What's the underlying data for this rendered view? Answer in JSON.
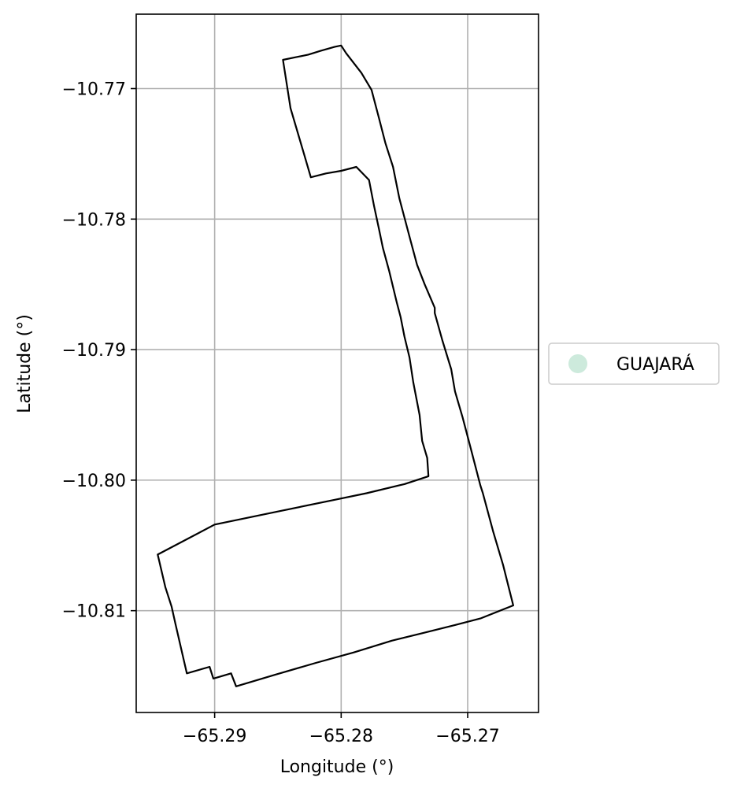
{
  "chart_data": {
    "type": "map",
    "xlabel": "Longitude (°)",
    "ylabel": "Latitude (°)",
    "xlim": [
      -65.2962,
      -65.2644
    ],
    "ylim": [
      -10.8178,
      -10.7643
    ],
    "x_ticks": [
      -65.29,
      -65.28,
      -65.27
    ],
    "x_tick_labels": [
      "−65.29",
      "−65.28",
      "−65.27"
    ],
    "y_ticks": [
      -10.77,
      -10.78,
      -10.79,
      -10.8,
      -10.81
    ],
    "y_tick_labels": [
      "−10.77",
      "−10.78",
      "−10.79",
      "−10.80",
      "−10.81"
    ],
    "grid": true,
    "legend_position": "right",
    "legend": [
      {
        "label": "GUAJARÁ",
        "color": "#cdeadc"
      }
    ],
    "boundary_color": "#000000",
    "boundary": [
      [
        -65.2846,
        -10.7678
      ],
      [
        -65.2836,
        -10.7676
      ],
      [
        -65.2826,
        -10.7674
      ],
      [
        -65.2816,
        -10.7671
      ],
      [
        -65.2805,
        -10.7668
      ],
      [
        -65.28,
        -10.7667
      ],
      [
        -65.2796,
        -10.7673
      ],
      [
        -65.2784,
        -10.7688
      ],
      [
        -65.2776,
        -10.7701
      ],
      [
        -65.277,
        -10.7723
      ],
      [
        -65.2765,
        -10.7742
      ],
      [
        -65.2759,
        -10.776
      ],
      [
        -65.2754,
        -10.7784
      ],
      [
        -65.2745,
        -10.7817
      ],
      [
        -65.274,
        -10.7835
      ],
      [
        -65.2734,
        -10.785
      ],
      [
        -65.2726,
        -10.7868
      ],
      [
        -65.2726,
        -10.7872
      ],
      [
        -65.272,
        -10.7893
      ],
      [
        -65.2713,
        -10.7915
      ],
      [
        -65.271,
        -10.7932
      ],
      [
        -65.2704,
        -10.7952
      ],
      [
        -65.2698,
        -10.7974
      ],
      [
        -65.269,
        -10.8004
      ],
      [
        -65.2688,
        -10.801
      ],
      [
        -65.268,
        -10.8039
      ],
      [
        -65.2672,
        -10.8065
      ],
      [
        -65.2664,
        -10.8096
      ],
      [
        -65.269,
        -10.8106
      ],
      [
        -65.271,
        -10.8111
      ],
      [
        -65.2735,
        -10.8117
      ],
      [
        -65.276,
        -10.8123
      ],
      [
        -65.279,
        -10.8132
      ],
      [
        -65.282,
        -10.814
      ],
      [
        -65.2852,
        -10.8149
      ],
      [
        -65.2883,
        -10.8158
      ],
      [
        -65.2887,
        -10.8148
      ],
      [
        -65.2901,
        -10.8152
      ],
      [
        -65.2901,
        -10.8152
      ],
      [
        -65.2904,
        -10.8143
      ],
      [
        -65.2922,
        -10.8148
      ],
      [
        -65.2931,
        -10.811
      ],
      [
        -65.2934,
        -10.8097
      ],
      [
        -65.2939,
        -10.8082
      ],
      [
        -65.2945,
        -10.8057
      ],
      [
        -65.29,
        -10.8034
      ],
      [
        -65.285,
        -10.8024
      ],
      [
        -65.2805,
        -10.8015
      ],
      [
        -65.278,
        -10.801
      ],
      [
        -65.275,
        -10.8003
      ],
      [
        -65.2731,
        -10.7997
      ],
      [
        -65.2732,
        -10.7983
      ],
      [
        -65.2736,
        -10.797
      ],
      [
        -65.2738,
        -10.795
      ],
      [
        -65.2743,
        -10.7925
      ],
      [
        -65.2746,
        -10.7906
      ],
      [
        -65.275,
        -10.789
      ],
      [
        -65.2753,
        -10.7875
      ],
      [
        -65.2756,
        -10.7864
      ],
      [
        -65.2758,
        -10.7856
      ],
      [
        -65.2762,
        -10.784
      ],
      [
        -65.2767,
        -10.7822
      ],
      [
        -65.277,
        -10.7808
      ],
      [
        -65.2774,
        -10.779
      ],
      [
        -65.2778,
        -10.777
      ],
      [
        -65.2788,
        -10.776
      ],
      [
        -65.28,
        -10.7763
      ],
      [
        -65.2812,
        -10.7765
      ],
      [
        -65.2824,
        -10.7768
      ],
      [
        -65.283,
        -10.7748
      ],
      [
        -65.284,
        -10.7715
      ],
      [
        -65.2846,
        -10.7678
      ]
    ]
  }
}
